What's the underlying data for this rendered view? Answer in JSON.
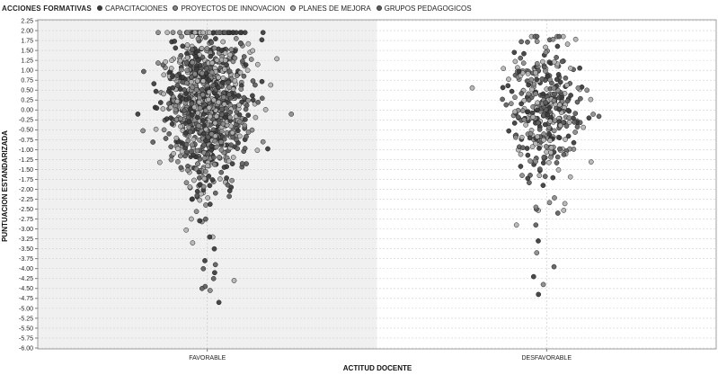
{
  "legend": {
    "title": "ACCIONES FORMATIVAS",
    "items": [
      {
        "label": "CAPACITACIONES",
        "color": "#3a3a3a"
      },
      {
        "label": "PROYECTOS DE INNOVACION",
        "color": "#8a8a8a"
      },
      {
        "label": "PLANES DE MEJORA",
        "color": "#b4b4b4"
      },
      {
        "label": "GRUPOS PEDAGOGICOS",
        "color": "#5e5e5e"
      }
    ]
  },
  "chart_data": {
    "type": "scatter",
    "title": "",
    "xlabel": "ACTITUD DOCENTE",
    "ylabel": "PUNTUACION ESTANDARIZADA",
    "categories": [
      "FAVORABLE",
      "DESFAVORABLE"
    ],
    "ylim": [
      -6.0,
      2.25
    ],
    "yticks": [
      2.25,
      2.0,
      1.75,
      1.5,
      1.25,
      1.0,
      0.75,
      0.5,
      0.25,
      0.0,
      -0.25,
      -0.5,
      -0.75,
      -1.0,
      -1.25,
      -1.5,
      -1.75,
      -2.0,
      -2.25,
      -2.5,
      -2.75,
      -3.0,
      -3.25,
      -3.5,
      -3.75,
      -4.0,
      -4.25,
      -4.5,
      -4.75,
      -5.0,
      -5.25,
      -5.5,
      -5.75,
      -6.0
    ],
    "ytick_labels": [
      "2.25",
      "2.00",
      "1.75",
      "1.50",
      "1.25",
      "1.00",
      "0.75",
      "0.50",
      "0.25",
      "0.00",
      "-0.25",
      "-0.50",
      "-0.75",
      "-1.00",
      "-1.25",
      "-1.50",
      "-1.75",
      "-2.00",
      "-2.25",
      "-2.50",
      "-2.75",
      "-3.00",
      "-3.25",
      "-3.50",
      "-3.75",
      "-4.00",
      "-4.25",
      "-4.50",
      "-4.75",
      "-5.00",
      "-5.25",
      "-5.50",
      "-5.75",
      "-6.00"
    ],
    "grid": true,
    "legend_position": "top",
    "highlighted_category": "FAVORABLE",
    "series": [
      {
        "name": "CAPACITACIONES",
        "color": "#3a3a3a"
      },
      {
        "name": "PROYECTOS DE INNOVACION",
        "color": "#8a8a8a"
      },
      {
        "name": "PLANES DE MEJORA",
        "color": "#b4b4b4"
      },
      {
        "name": "GRUPOS PEDAGOGICOS",
        "color": "#5e5e5e"
      }
    ],
    "groups": [
      {
        "category": "FAVORABLE",
        "approx_n": 1000,
        "mean": 0.15,
        "sd": 1.05,
        "min": -5.0,
        "max": 1.95,
        "outliers": [
          -4.0,
          -4.1,
          -4.25,
          -4.3,
          -4.45,
          -4.5,
          -4.55,
          -4.85,
          -3.8,
          -3.9,
          -3.35,
          -3.5
        ]
      },
      {
        "category": "DESFAVORABLE",
        "approx_n": 380,
        "mean": 0.05,
        "sd": 0.95,
        "min": -4.7,
        "max": 1.85,
        "outliers": [
          -3.3,
          -3.6,
          -3.95,
          -4.2,
          -4.4,
          -4.65,
          -2.6,
          -2.5,
          -2.45
        ]
      }
    ]
  }
}
